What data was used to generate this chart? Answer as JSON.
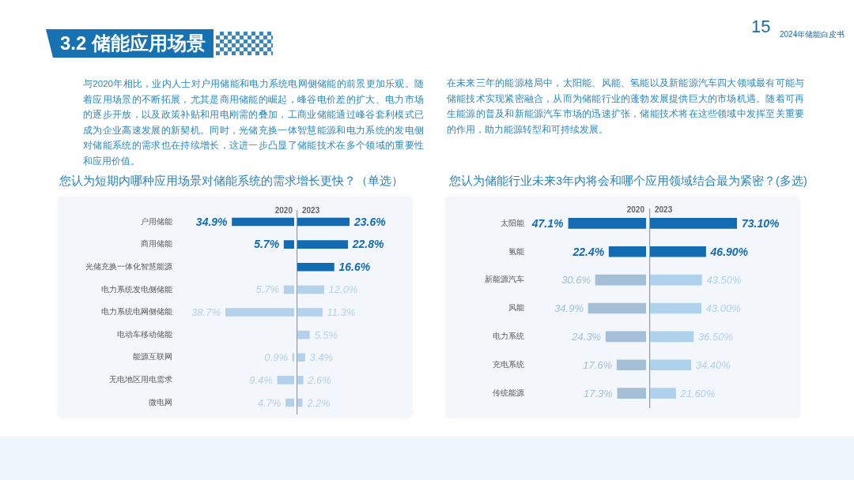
{
  "chart_data": [
    {
      "type": "other",
      "title": "3.2 储能应用场景",
      "annotations": [
        "与2020年相比，业内人士对户用储能和电力系统电网侧储能的前景更加乐观。随着应用场景的不断拓展，尤其是商用储能的崛起，峰谷电价差的扩大、电力市场的逐步开放，以及政策补贴和用电刚需的叠加，工商业储能通过峰谷套利模式已成为企业高速发展的新契机。同时，光储充换一体智慧能源和电力系统的发电侧对储能系统的需求也在持续增长，这进一步凸显了储能技术在多个领域的重要性和应用价值。",
        "在未来三年的能源格局中，太阳能、风能、氢能以及新能源汽车四大领域最有可能与储能技术实现紧密融合，从而为储能行业的蓬勃发展提供巨大的市场机遇。随着可再生能源的普及和新能源汽车市场的迅速扩张，储能技术将在这些领域中发挥至关重要的作用，助力能源转型和可持续发展。",
        "15",
        "2024年储能白皮书"
      ]
    },
    {
      "type": "bar",
      "orientation": "horizontal",
      "title": "您认为短期内哪种应用场景对储能系统的需求增长更快？（单选）",
      "categories": [
        "户用储能",
        "商用储能",
        "光储充换一体化智慧能源",
        "电力系统发电侧储能",
        "电力系统电网侧储能",
        "电动车移动储能",
        "能源互联网",
        "无电地区用电需求",
        "微电网"
      ],
      "series": [
        {
          "name": "2020",
          "values": [
            34.9,
            5.7,
            null,
            5.7,
            38.7,
            null,
            0.9,
            9.4,
            4.7
          ],
          "colors": [
            "#136bb2",
            "#136bb2",
            null,
            "#b3d1ea",
            "#b3d1ea",
            null,
            "#b3d1ea",
            "#b3d1ea",
            "#b3d1ea"
          ],
          "value_labels": [
            "34.9%",
            "5.7%",
            null,
            "5.7%",
            "38.7%",
            null,
            "0.9%",
            "9.4%",
            "4.7%"
          ]
        }
      ],
      "tick_labels": "y"
    },
    {
      "type": "bar",
      "orientation": "horizontal",
      "categories": [
        null,
        null,
        null,
        null,
        null,
        null,
        null,
        null,
        null
      ],
      "series": [
        {
          "name": "2023",
          "values": [
            23.6,
            22.8,
            16.6,
            12.0,
            11.3,
            5.5,
            3.4,
            2.6,
            2.2
          ],
          "colors": [
            "#136bb2",
            "#136bb2",
            "#136bb2",
            "#b3d1ea",
            "#b3d1ea",
            "#b3d1ea",
            "#b3d1ea",
            "#b3d1ea",
            "#b3d1ea"
          ],
          "value_labels": [
            "23.6%",
            "22.8%",
            "16.6%",
            "12.0%",
            "11.3%",
            "5.5%",
            "3.4%",
            "2.6%",
            "2.2%"
          ]
        }
      ],
      "tick_labels": "y"
    },
    {
      "type": "bar",
      "orientation": "horizontal",
      "title": "您认为储能行业未来3年内将会和哪个应用领域结合最为紧密？(多选)",
      "categories": [
        "太阳能",
        "氢能",
        "新能源汽车",
        "风能",
        "电力系统",
        "充电系统",
        "传统能源"
      ],
      "series": [
        {
          "name": "2020",
          "values": [
            47.1,
            22.4,
            30.6,
            34.9,
            24.3,
            17.6,
            17.3
          ],
          "colors": [
            "#136bb2",
            "#136bb2",
            "#a4bfd6",
            "#a4bfd6",
            "#a4bfd6",
            "#a4bfd6",
            "#a4bfd6"
          ],
          "value_labels": [
            "47.1%",
            "22.4%",
            "30.6%",
            "34.9%",
            "24.3%",
            "17.6%",
            "17.3%"
          ]
        }
      ],
      "tick_labels": "y"
    },
    {
      "type": "bar",
      "orientation": "horizontal",
      "categories": [
        null,
        null,
        null,
        null,
        null,
        null,
        null
      ],
      "series": [
        {
          "name": "2023",
          "values": [
            73.1,
            46.9,
            43.5,
            43.0,
            36.5,
            34.4,
            21.6
          ],
          "colors": [
            "#136bb2",
            "#136bb2",
            "#aed1ec",
            "#aed1ec",
            "#aed1ec",
            "#aed1ec",
            "#aed1ec"
          ],
          "value_labels": [
            "73.10%",
            "46.90%",
            "43.50%",
            "43.00%",
            "36.50%",
            "34.40%",
            "21.60%"
          ]
        }
      ],
      "tick_labels": "y"
    }
  ]
}
